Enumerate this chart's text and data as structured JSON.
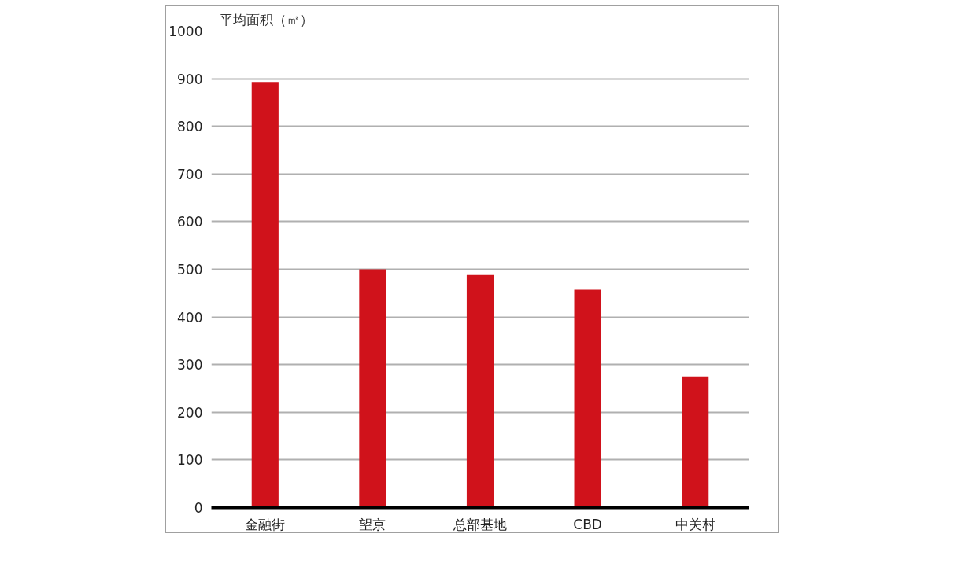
{
  "chart_data": {
    "type": "bar",
    "ylabel": "平均面积（㎡）",
    "categories": [
      "金融街",
      "望京",
      "总部基地",
      "CBD",
      "中关村"
    ],
    "values": [
      893,
      500,
      488,
      457,
      275
    ],
    "color": "#d0121b",
    "ylim": [
      0,
      1000
    ],
    "yticks": [
      0,
      100,
      200,
      300,
      400,
      500,
      600,
      700,
      800,
      900,
      1000
    ],
    "grid": "y"
  }
}
